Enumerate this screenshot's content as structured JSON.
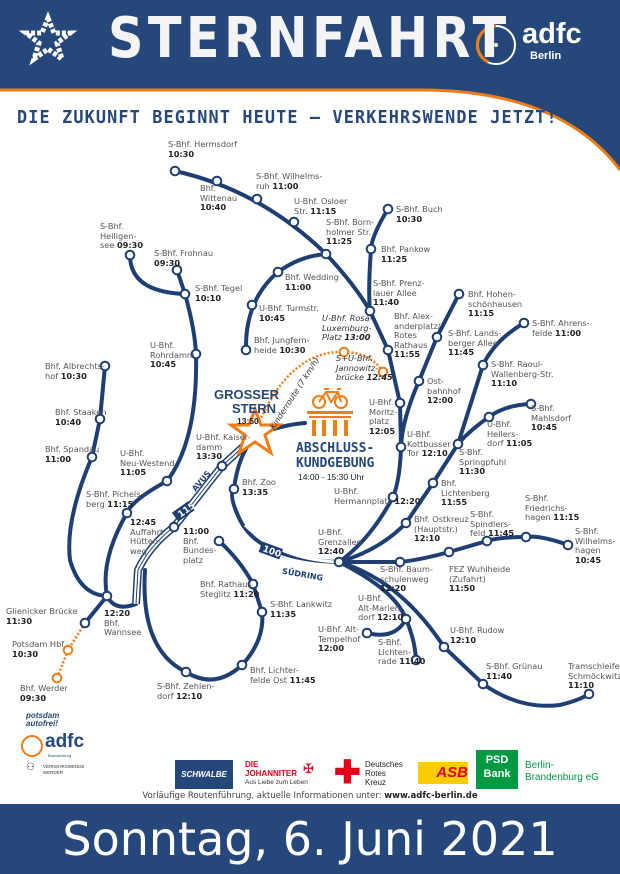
{
  "colors": {
    "primary": "#26477a",
    "accent": "#f07d16",
    "route": "#1f3f72",
    "red": "#e3001b",
    "green": "#009a44"
  },
  "header": {
    "title": "STERNFAHRT",
    "logo": "adfc",
    "logo_sub": "Berlin",
    "slogan": "DIE ZUKUNFT BEGINNT HEUTE – VERKEHRSWENDE JETZT!"
  },
  "map": {
    "center": {
      "name": "GROSSER\nSTERN",
      "time": "13:50"
    },
    "finale": {
      "line1": "ABSCHLUSS-",
      "line2": "KUNDGEBUNG",
      "time": "14:00 - 15:30 Uhr"
    },
    "kinderroute": "Kinderroute (7 km/h)",
    "avus": "AVUS",
    "road_115": "115",
    "road_100": "100",
    "suedring": "SÜDRING",
    "stations": [
      {
        "name": "S-Bhf. Hermsdorf",
        "time": "10:30"
      },
      {
        "name": "Bhf.\nWittenau",
        "time": "10:40"
      },
      {
        "name": "S-Bhf. Wilhelms-\nruh",
        "time": "11:00"
      },
      {
        "name": "U-Bhf. Osloer\nStr.",
        "time": "11:15"
      },
      {
        "name": "S-Bhf. Born-\nholmer Str.",
        "time": "11:25"
      },
      {
        "name": "Bhf. Wedding",
        "time": "11:00"
      },
      {
        "name": "U-Bhf. Turmstr.",
        "time": "10:45"
      },
      {
        "name": "Bhf. Jungfern-\nheide",
        "time": "10:30"
      },
      {
        "name": "S-Bhf. Buch",
        "time": "10:30"
      },
      {
        "name": "Bhf. Pankow",
        "time": "11:25"
      },
      {
        "name": "S-Bhf. Prenz-\nlauer Allee",
        "time": "11:40"
      },
      {
        "name": "Bhf. Alex-\nanderplatz/\nRotes\nRathaus",
        "time": "11:55"
      },
      {
        "name": "U-Bhf.\nMoritz-\nplatz",
        "time": "12:05"
      },
      {
        "name": "U-Bhf.\nKottbusser\nTor",
        "time": "12:10"
      },
      {
        "name": "U-Bhf.\nHermannplatz",
        "time": "12:20"
      },
      {
        "name": "U-Bhf.\nGrenzallee",
        "time": "12:40"
      },
      {
        "name": "Bhf. Hohen-\nschönhausen",
        "time": "11:15"
      },
      {
        "name": "S-Bhf. Lands-\nberger Allee",
        "time": "11:45"
      },
      {
        "name": "Ost-\nbahnhof",
        "time": "12:00"
      },
      {
        "name": "S-Bhf. Ahrens-\nfelde",
        "time": "11:00"
      },
      {
        "name": "S-Bhf. Raoul-\nWallenberg-Str.",
        "time": "11:10"
      },
      {
        "name": "S-Bhf.\nMahlsdorf",
        "time": "10:45"
      },
      {
        "name": "U-Bhf.\nHellers-\ndorf",
        "time": "11:05"
      },
      {
        "name": "S-Bhf.\nSpringpfuhl",
        "time": "11:30"
      },
      {
        "name": "Bhf.\nLichtenberg",
        "time": "11:55"
      },
      {
        "name": "Bhf. Ostkreuz\n(Hauptstr.)",
        "time": "12:10"
      },
      {
        "name": "S-Bhf. Baum-\nschulenweg",
        "time": "12:20"
      },
      {
        "name": "FEZ Wuhlheide\n(Zufahrt)",
        "time": "11:50"
      },
      {
        "name": "S-Bhf.\nSpindlers-\nfeld",
        "time": "11:45"
      },
      {
        "name": "S-Bhf.\nFriedrichs-\nhagen",
        "time": "11:15"
      },
      {
        "name": "S-Bhf.\nWilhelms-\nhagen",
        "time": "10:45"
      },
      {
        "name": "U-Bhf.\nAlt-Marien-\ndorf",
        "time": "12:10"
      },
      {
        "name": "U-Bhf. Alt-\nTempelhof",
        "time": "12:00"
      },
      {
        "name": "S-Bhf.\nLichten-\nrade",
        "time": "11:40"
      },
      {
        "name": "U-Bhf. Rudow",
        "time": "12:10"
      },
      {
        "name": "S-Bhf. Grünau",
        "time": "11:40"
      },
      {
        "name": "Tramschleife\nSchmöckwitz",
        "time": "11:10"
      },
      {
        "name": "S-Bhf.\nHeiligen-\nsee",
        "time": "09:30"
      },
      {
        "name": "S-Bhf. Frohnau",
        "time": "09:30"
      },
      {
        "name": "S-Bhf. Tegel",
        "time": "10:10"
      },
      {
        "name": "U-Bhf.\nRohrdamm",
        "time": "10:45"
      },
      {
        "name": "Bhf. Albrechts-\nhof",
        "time": "10:30"
      },
      {
        "name": "Bhf. Staaken",
        "time": "10:40"
      },
      {
        "name": "Bhf. Spandau",
        "time": "11:00"
      },
      {
        "name": "U-Bhf.\nNeu-Westend",
        "time": "11:05"
      },
      {
        "name": "S-Bhf. Pichels-\nberg",
        "time": "11:15"
      },
      {
        "name": "U-Bhf. Kaiser-\ndamm",
        "time": "13:30"
      },
      {
        "name": "Bhf. Zoo",
        "time": "13:35"
      },
      {
        "name": "Auffahrt\nHütten-\nweg",
        "time": "12:45"
      },
      {
        "name": "Bhf.\nBundes-\nplatz",
        "time": "11:00"
      },
      {
        "name": "Bhf. Rathaus\nSteglitz",
        "time": "11:20"
      },
      {
        "name": "S-Bhf. Lankwitz",
        "time": "11:35"
      },
      {
        "name": "Bhf. Lichter-\nfelde Ost",
        "time": "11:45"
      },
      {
        "name": "S-Bhf. Zehlen-\ndorf",
        "time": "12:10"
      },
      {
        "name": "Bhf.\nWannsee",
        "time": "12:20"
      },
      {
        "name": "Glienicker Brücke",
        "time": "11:30"
      },
      {
        "name": "Potsdam Hbf",
        "time": "10:30"
      },
      {
        "name": "Bhf. Werder",
        "time": "09:30"
      },
      {
        "name": "U-Bhf. Rosa-\nLuxemburg-\nPlatz",
        "time": "13:00"
      },
      {
        "name": "S+U-Bhf.\nJannowitz-\nbrücke",
        "time": "12:45"
      }
    ]
  },
  "partners_left": {
    "potsdam": "potsdam autofrei!",
    "adfc": "adfc",
    "adfc_sub": "Brandenburg",
    "vw": "VERKEHRSWENDE\nWERDER"
  },
  "sponsors": {
    "schwalbe": "SCHWALBE",
    "johanniter": "DIE\nJOHANNITER",
    "johanniter_sub": "Aus Liebe zum Leben",
    "drk": "Deutsches\nRotes\nKreuz",
    "asb": "ASB",
    "psd": "PSD\nBank",
    "psd_sub": "Berlin-\nBrandenburg eG"
  },
  "footer": {
    "note": "Vorläufige Routenführung, aktuelle Informationen unter: ",
    "url": "www.adfc-berlin.de",
    "date": "Sonntag, 6. Juni 2021"
  }
}
